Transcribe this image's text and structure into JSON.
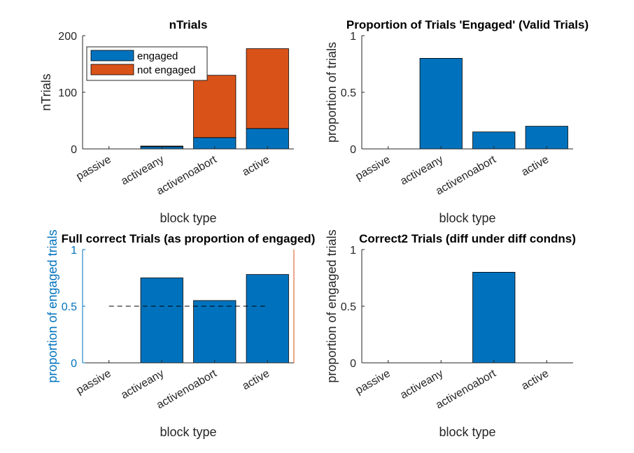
{
  "colors": {
    "engaged": "#0072BD",
    "not_engaged": "#D95319",
    "axis": "#262626",
    "axis_blue": "#0072BD",
    "reference": "#000000"
  },
  "chart_data": [
    {
      "type": "bar",
      "stacked": true,
      "title": "nTrials",
      "xlabel": "block type",
      "ylabel": "nTrials",
      "categories": [
        "passive",
        "activeany",
        "activenoabort",
        "active"
      ],
      "ylim": [
        0,
        200
      ],
      "yticks": [
        0,
        100,
        200
      ],
      "legend": {
        "position": "top-left",
        "entries": [
          "engaged",
          "not engaged"
        ]
      },
      "series": [
        {
          "name": "engaged",
          "values": [
            0,
            4,
            20,
            36
          ]
        },
        {
          "name": "not engaged",
          "values": [
            0,
            1,
            110,
            141
          ]
        }
      ]
    },
    {
      "type": "bar",
      "title": "Proportion of Trials 'Engaged' (Valid Trials)",
      "xlabel": "block type",
      "ylabel": "proportion of trials",
      "categories": [
        "passive",
        "activeany",
        "activenoabort",
        "active"
      ],
      "ylim": [
        0,
        1
      ],
      "yticks": [
        0,
        0.5,
        1
      ],
      "values": [
        0,
        0.8,
        0.15,
        0.2
      ]
    },
    {
      "type": "bar",
      "title": "Full correct Trials (as proportion of engaged)",
      "xlabel": "block type",
      "ylabel": "proportion of engaged trials",
      "categories": [
        "passive",
        "activeany",
        "activenoabort",
        "active"
      ],
      "ylim": [
        0,
        1
      ],
      "yticks": [
        0,
        0.5,
        1
      ],
      "values": [
        0,
        0.75,
        0.55,
        0.78
      ],
      "reference_line": {
        "y": 0.5,
        "style": "dashed",
        "from_category": 0,
        "to_category": 3
      }
    },
    {
      "type": "bar",
      "title": "Correct2 Trials (diff under diff condns)",
      "xlabel": "block type",
      "ylabel": "proportion of engaged trials",
      "categories": [
        "passive",
        "activeany",
        "activenoabort",
        "active"
      ],
      "ylim": [
        0,
        1
      ],
      "yticks": [
        0,
        0.5,
        1
      ],
      "values": [
        0,
        0,
        0.8,
        0
      ]
    }
  ]
}
